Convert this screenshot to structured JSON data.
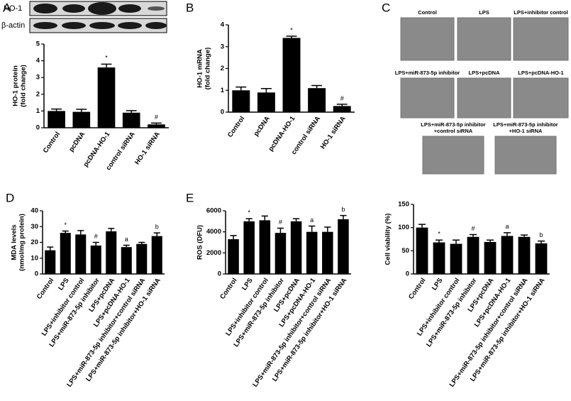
{
  "panel_labels": [
    "A",
    "B",
    "C",
    "D",
    "E"
  ],
  "blot": {
    "labels": [
      "HO-1",
      "β-actin"
    ]
  },
  "micrographs": {
    "labels": [
      [
        "Control"
      ],
      [
        "LPS"
      ],
      [
        "LPS+inhibitor control"
      ],
      [
        "LPS+miR-873-5p inhibitor"
      ],
      [
        "LPS+pcDNA"
      ],
      [
        "LPS+pcDNA-HO-1"
      ],
      [
        "LPS+miR-873-5p inhibitor",
        "+control siRNA"
      ],
      [
        "LPS+miR-873-5p inhibitor",
        "+HO-1 siRNA"
      ]
    ]
  },
  "chart_data": [
    {
      "type": "bar",
      "ylabel": [
        "HO-1 protein",
        "(fold change)"
      ],
      "categories": [
        "Control",
        "pcDNA",
        "pcDNA-HO-1",
        "control siRNA",
        "HO-1 siRNA"
      ],
      "values": [
        1.0,
        0.95,
        3.6,
        0.9,
        0.2
      ],
      "errors": [
        0.12,
        0.15,
        0.2,
        0.12,
        0.08
      ],
      "color": "#000000",
      "ylim": [
        0,
        5
      ],
      "yticks": [
        0,
        1,
        2,
        3,
        4,
        5
      ],
      "annotations": [
        {
          "index": 2,
          "text": "*"
        },
        {
          "index": 4,
          "text": "#"
        }
      ]
    },
    {
      "type": "bar",
      "ylabel": [
        "HO-1 mRNA",
        "(fold change)"
      ],
      "categories": [
        "Control",
        "pcDNA",
        "pcDNA-HO-1",
        "control siRNA",
        "HO-1 siRNA"
      ],
      "values": [
        1.0,
        0.9,
        3.4,
        1.1,
        0.28
      ],
      "errors": [
        0.15,
        0.18,
        0.08,
        0.12,
        0.08
      ],
      "color": "#000000",
      "ylim": [
        0,
        4
      ],
      "yticks": [
        0,
        1,
        2,
        3,
        4
      ],
      "annotations": [
        {
          "index": 2,
          "text": "*"
        },
        {
          "index": 4,
          "text": "#"
        }
      ]
    },
    {
      "type": "bar",
      "ylabel": [
        "MDA levels",
        "(nmol/mg protein)"
      ],
      "categories": [
        "Control",
        "LPS",
        "LPS+inhibitor control",
        "LPS+miR-873-5p inhibitor",
        "LPS+pcDNA",
        "LPS+pcDNA-HO-1",
        "LPS+miR-873-5p inhibitor+control siRNA",
        "LPS+miR-873-5p inhibitor+HO-1 siRNA"
      ],
      "values": [
        15,
        26,
        25,
        18,
        27,
        17,
        19,
        24
      ],
      "errors": [
        2,
        1.2,
        2.5,
        2,
        1.8,
        1.2,
        1,
        2
      ],
      "color": "#000000",
      "ylim": [
        0,
        40
      ],
      "yticks": [
        0,
        10,
        20,
        30,
        40
      ],
      "annotations": [
        {
          "index": 1,
          "text": "*"
        },
        {
          "index": 3,
          "text": "#"
        },
        {
          "index": 5,
          "text": "a"
        },
        {
          "index": 7,
          "text": "b"
        }
      ]
    },
    {
      "type": "bar",
      "ylabel": [
        "ROS (DFU)"
      ],
      "categories": [
        "Control",
        "LPS",
        "LPS+inhibitor control",
        "LPS+miR-873-5p inhibitor",
        "LPS+pcDNA",
        "LPS+pcDNA-HO-1",
        "LPS+miR-873-5p inhibitor+control siRNA",
        "LPS+miR-873-5p inhibitor+HO-1 siRNA"
      ],
      "values": [
        3300,
        5000,
        5100,
        3900,
        5000,
        4000,
        4000,
        5200
      ],
      "errors": [
        350,
        250,
        400,
        450,
        250,
        550,
        450,
        350
      ],
      "color": "#000000",
      "ylim": [
        0,
        6000
      ],
      "yticks": [
        0,
        2000,
        4000,
        6000
      ],
      "annotations": [
        {
          "index": 1,
          "text": "*"
        },
        {
          "index": 3,
          "text": "#"
        },
        {
          "index": 5,
          "text": "a"
        },
        {
          "index": 7,
          "text": "b"
        }
      ]
    },
    {
      "type": "bar",
      "ylabel": [
        "Cell viability (%)"
      ],
      "categories": [
        "Control",
        "LPS",
        "LPS+inhibitor control",
        "LPS+miR-873-5p inhibitor",
        "LPS+pcDNA",
        "LPS+pcDNA-HO-1",
        "LPS+miR-873-5p inhibitor+control siRNA",
        "LPS+miR-873-5p inhibitor+HO-1 siRNA"
      ],
      "values": [
        100,
        68,
        65,
        80,
        69,
        82,
        80,
        66
      ],
      "errors": [
        7,
        5,
        8,
        5,
        4,
        7,
        4,
        5
      ],
      "color": "#000000",
      "ylim": [
        0,
        150
      ],
      "yticks": [
        0,
        50,
        100,
        150
      ],
      "annotations": [
        {
          "index": 1,
          "text": "*"
        },
        {
          "index": 3,
          "text": "#"
        },
        {
          "index": 5,
          "text": "a"
        },
        {
          "index": 7,
          "text": "b"
        }
      ]
    }
  ]
}
